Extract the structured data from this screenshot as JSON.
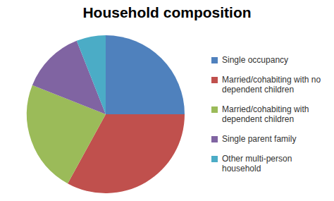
{
  "chart_data": {
    "type": "pie",
    "title": "Household composition",
    "categories": [
      "Single occupancy",
      "Married/cohabiting with no dependent children",
      "Married/cohabiting with dependent children",
      "Single parent family",
      "Other multi-person household"
    ],
    "values": [
      25,
      33,
      23,
      13,
      6
    ],
    "colors": [
      "#4f81bd",
      "#c0504d",
      "#9bbb59",
      "#8064a2",
      "#4bacc6"
    ],
    "legend": "right"
  }
}
